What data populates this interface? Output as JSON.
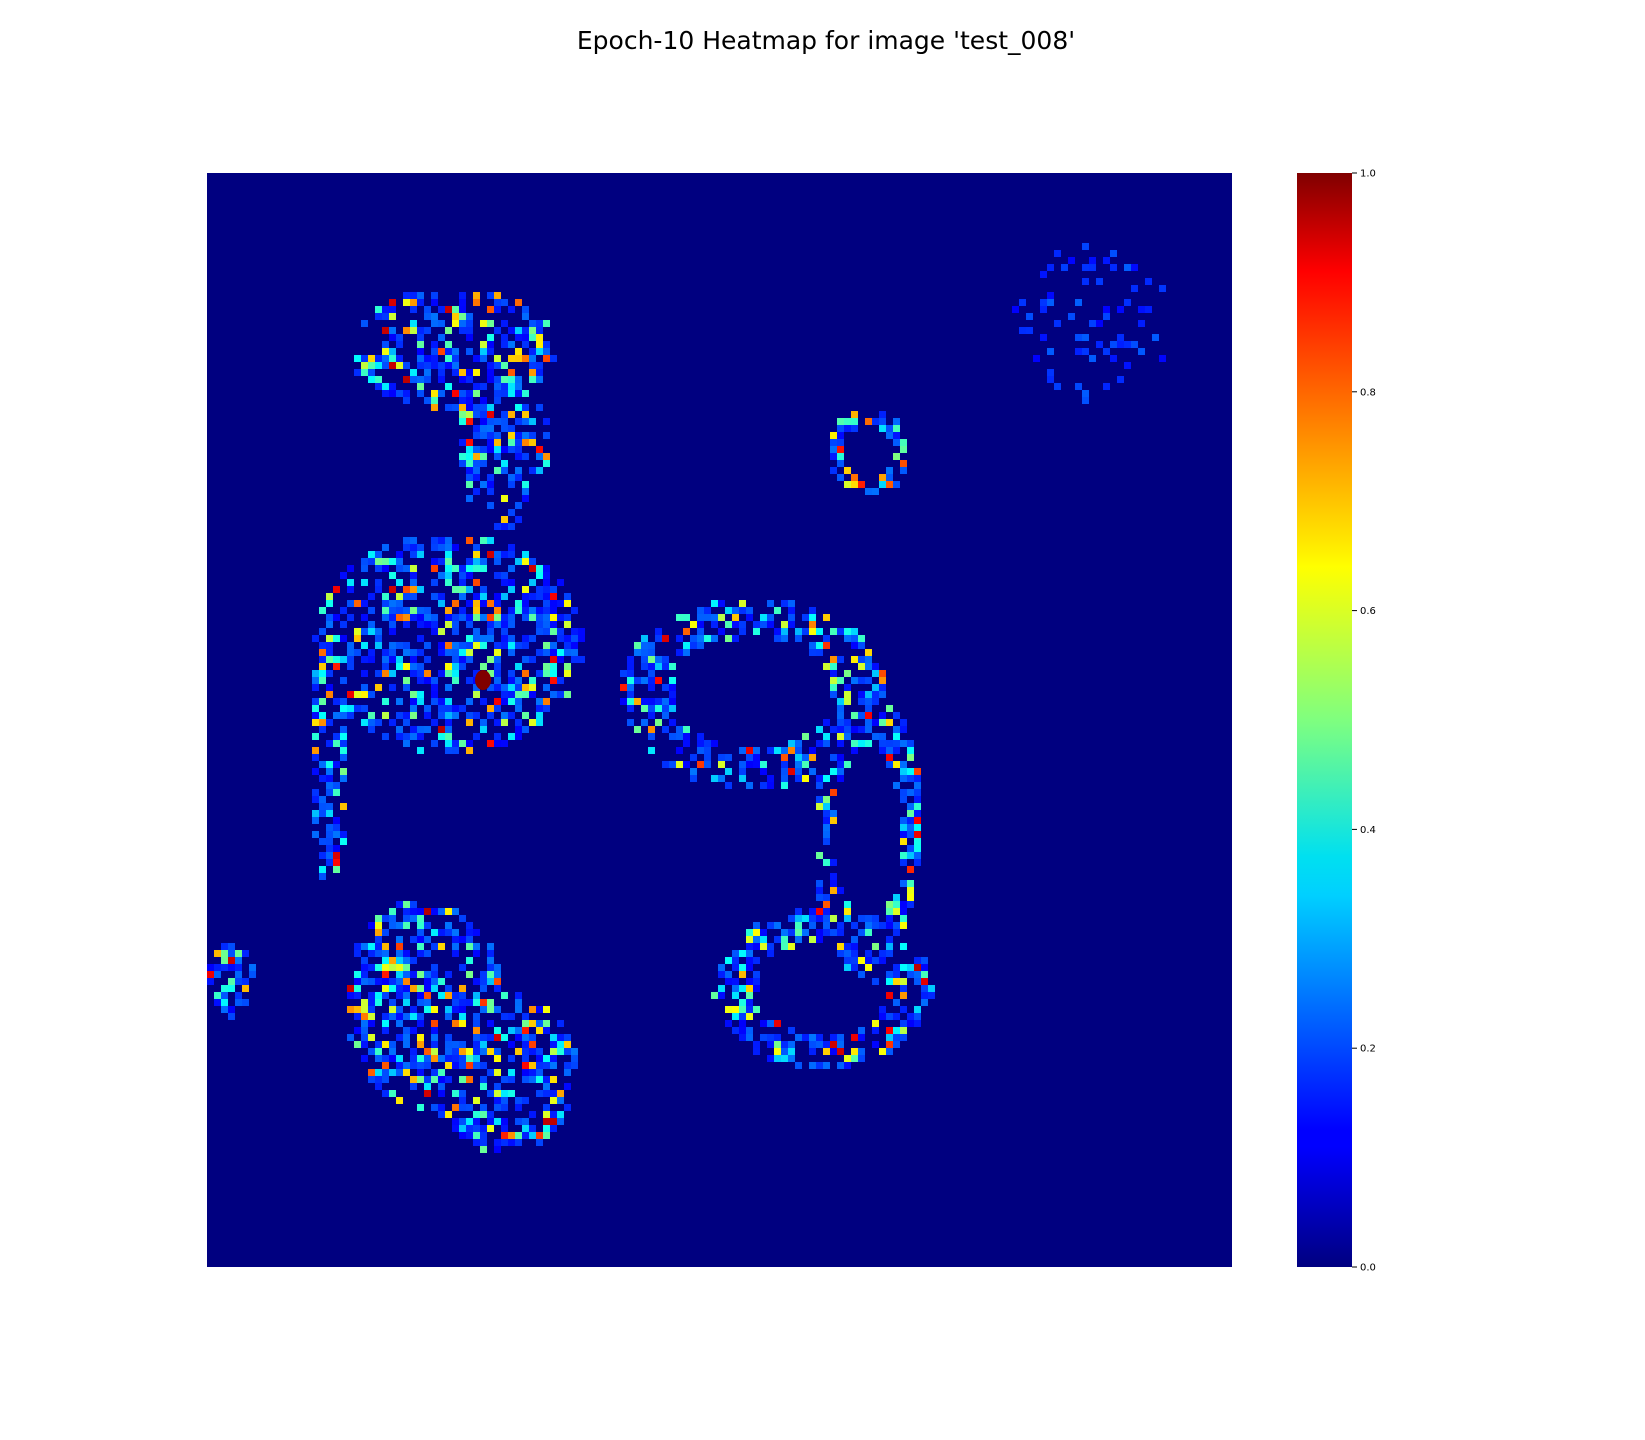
{
  "chart_data": {
    "type": "heatmap",
    "title": "Epoch-10 Heatmap for image 'test_008'",
    "colormap": "jet",
    "background_value": 0.0,
    "color_range": [
      0.0,
      1.0
    ],
    "colorbar": {
      "ticks": [
        0.0,
        0.2,
        0.4,
        0.6,
        0.8,
        1.0
      ],
      "tick_labels": [
        "0.0",
        "0.2",
        "0.4",
        "0.6",
        "0.8",
        "1.0"
      ],
      "placement": "right"
    },
    "axes_visible": false,
    "regions": [
      {
        "name": "upper-left arm",
        "shape": "blob",
        "value_range": [
          0.1,
          0.9
        ]
      },
      {
        "name": "left middle cluster",
        "shape": "blob",
        "value_range": [
          0.1,
          1.0
        ]
      },
      {
        "name": "lower-left cluster",
        "shape": "blob",
        "value_range": [
          0.1,
          0.9
        ]
      },
      {
        "name": "center ring",
        "shape": "ring",
        "value_range": [
          0.1,
          0.8
        ]
      },
      {
        "name": "upper-center ring",
        "shape": "ring",
        "value_range": [
          0.1,
          0.7
        ]
      }
    ]
  }
}
